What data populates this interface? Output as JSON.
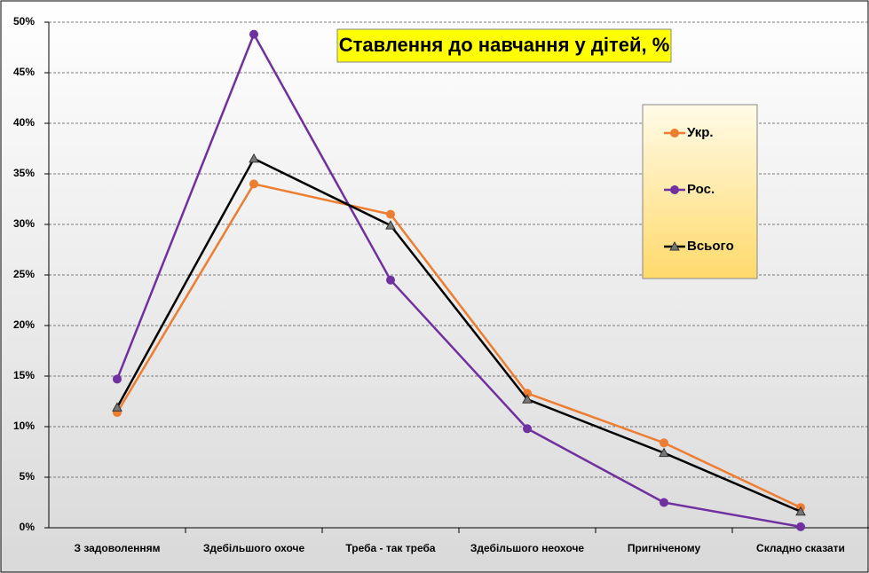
{
  "chart_data": {
    "type": "line",
    "title": "Ставлення до навчання у дітей, %",
    "categories": [
      "З задоволенням",
      "Здебільшого охоче",
      "Треба - так треба",
      "Здебільшого неохоче",
      "Пригніченому",
      "Складно сказати"
    ],
    "series": [
      {
        "name": "Укр.",
        "color": "#ed7d31",
        "marker": "circle",
        "values": [
          11.4,
          34.0,
          31.0,
          13.3,
          8.4,
          2.0
        ]
      },
      {
        "name": "Рос.",
        "color": "#7030a0",
        "marker": "circle",
        "values": [
          14.7,
          48.8,
          24.5,
          9.8,
          2.5,
          0.1
        ]
      },
      {
        "name": "Всього",
        "color": "#000000",
        "marker": "triangle",
        "values": [
          11.9,
          36.5,
          29.9,
          12.7,
          7.4,
          1.6
        ]
      }
    ],
    "ylim": [
      0,
      50
    ],
    "yticks": [
      {
        "value": 0,
        "label": "0%"
      },
      {
        "value": 5,
        "label": "5%"
      },
      {
        "value": 10,
        "label": "10%"
      },
      {
        "value": 15,
        "label": "15%"
      },
      {
        "value": 20,
        "label": "20%"
      },
      {
        "value": 25,
        "label": "25%"
      },
      {
        "value": 30,
        "label": "30%"
      },
      {
        "value": 35,
        "label": "35%"
      },
      {
        "value": 40,
        "label": "40%"
      },
      {
        "value": 45,
        "label": "45%"
      },
      {
        "value": 50,
        "label": "50%"
      }
    ],
    "grid": true
  }
}
